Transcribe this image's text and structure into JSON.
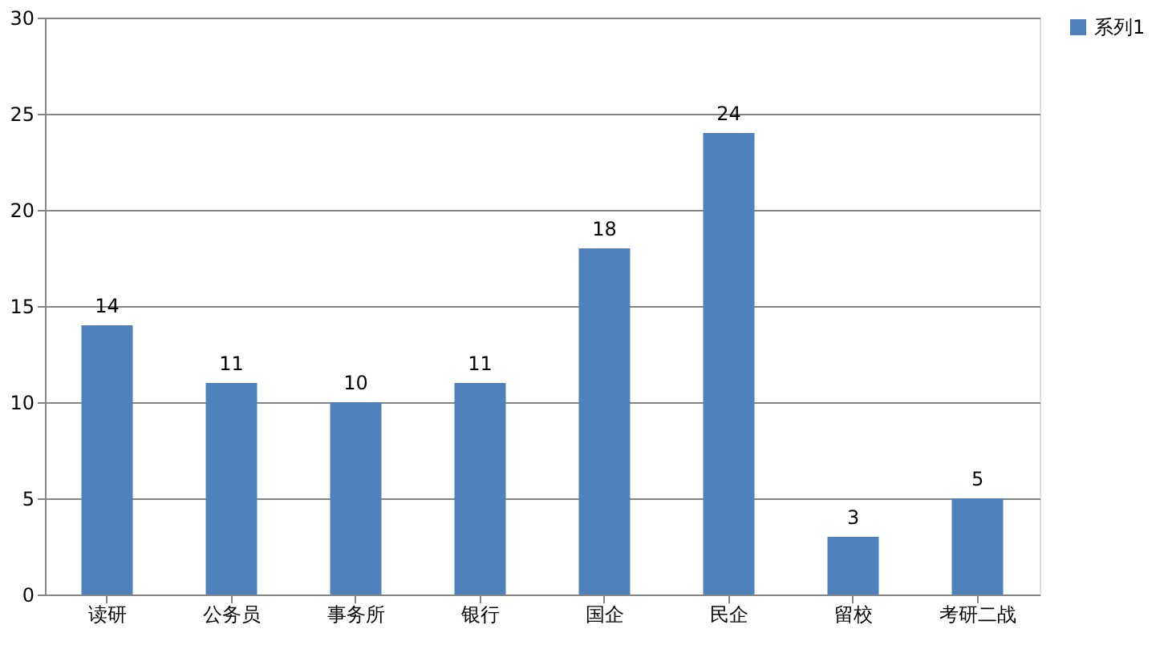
{
  "chart_data": {
    "type": "bar",
    "categories": [
      "读研",
      "公务员",
      "事务所",
      "银行",
      "国企",
      "民企",
      "留校",
      "考研二战"
    ],
    "series": [
      {
        "name": "系列1",
        "color": "#4f81bd",
        "values": [
          14,
          11,
          10,
          11,
          18,
          24,
          3,
          5
        ]
      }
    ],
    "ylim": [
      0,
      30
    ],
    "yticks": [
      0,
      5,
      10,
      15,
      20,
      25,
      30
    ],
    "grid": "y",
    "legend": "right",
    "data_labels": true
  }
}
